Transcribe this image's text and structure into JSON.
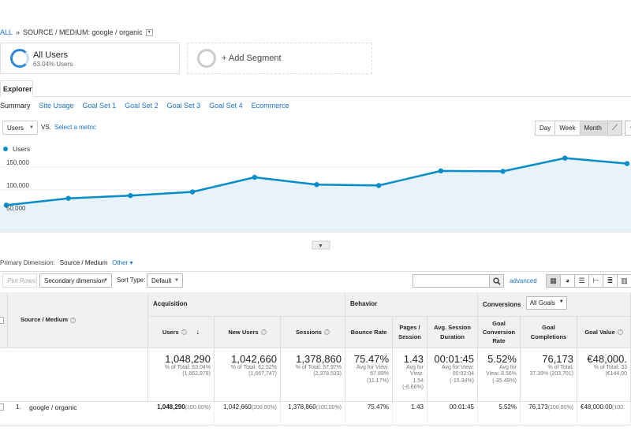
{
  "breadcrumb": {
    "all": "ALL",
    "sep": "»",
    "path": "SOURCE / MEDIUM: google / organic"
  },
  "segments": {
    "all_users": {
      "title": "All Users",
      "subtitle": "63.04% Users"
    },
    "add_segment": {
      "label": "+ Add Segment"
    }
  },
  "explorer_tab": "Explorer",
  "subtabs": [
    "Summary",
    "Site Usage",
    "Goal Set 1",
    "Goal Set 2",
    "Goal Set 3",
    "Goal Set 4",
    "Ecommerce"
  ],
  "metric": {
    "selected": "Users",
    "vs": "VS.",
    "select_metric": "Select a metric"
  },
  "period": {
    "day": "Day",
    "week": "Week",
    "month": "Month",
    "active": "Month"
  },
  "chart_data": {
    "type": "area",
    "series": [
      {
        "name": "Users",
        "values": [
          58000,
          73000,
          79000,
          87000,
          119000,
          103000,
          101000,
          133000,
          132000,
          161000,
          149000
        ]
      }
    ],
    "y_ticks": [
      "150,000",
      "100,000",
      "50,000"
    ],
    "ylim": [
      0,
      200000
    ],
    "grid": true,
    "legend": "top-left",
    "color": "#058dc7",
    "fill": "#e7f2fa"
  },
  "primary_dimension": {
    "label": "Primary Dimension:",
    "value": "Source / Medium",
    "other": "Other"
  },
  "toolbar": {
    "plot_rows": "Plot Rows",
    "secondary_dimension": "Secondary dimension",
    "sort_label": "Sort Type:",
    "sort_value": "Default",
    "advanced": "advanced"
  },
  "table": {
    "dimension_header": "Source / Medium",
    "groups": {
      "acquisition": "Acquisition",
      "behavior": "Behavior",
      "conversions": "Conversions",
      "goals_select": "All Goals"
    },
    "columns": {
      "users": "Users",
      "new_users": "New Users",
      "sessions": "Sessions",
      "bounce_rate": "Bounce Rate",
      "pages_session": "Pages / Session",
      "avg_session": "Avg. Session Duration",
      "goal_conv": "Goal Conversion Rate",
      "goal_completions": "Goal Completions",
      "goal_value": "Goal Value"
    },
    "totals": {
      "users": {
        "value": "1,048,290",
        "line1": "% of Total: 63.04%",
        "line2": "(1,662,978)"
      },
      "new_users": {
        "value": "1,042,660",
        "line1": "% of Total: 62.52%",
        "line2": "(1,667,747)"
      },
      "sessions": {
        "value": "1,378,860",
        "line1": "% of Total: 57.97%",
        "line2": "(2,378,533)"
      },
      "bounce_rate": {
        "value": "75.47%",
        "line1": "Avg for View:",
        "line2": "67.89%",
        "line3": "(11.17%)"
      },
      "pages_session": {
        "value": "1.43",
        "line1": "Avg for",
        "line2": "View:",
        "line3": "1.54",
        "line4": "(-6.66%)"
      },
      "avg_session": {
        "value": "00:01:45",
        "line1": "Avg for View:",
        "line2": "00:02:04",
        "line3": "(-15.34%)"
      },
      "goal_conv": {
        "value": "5.52%",
        "line1": "Avg for",
        "line2": "View: 8.56%",
        "line3": "(-35.49%)"
      },
      "goal_completions": {
        "value": "76,173",
        "line1": "% of Total:",
        "line2": "37.39% (203,701)"
      },
      "goal_value": {
        "value": "€48,000.",
        "line1": "% of Total: 33",
        "line2": "(€144,00"
      }
    },
    "row1": {
      "index": "1.",
      "name": "google / organic",
      "users": "1,048,290",
      "users_pct": "(100.00%)",
      "new_users": "1,042,660",
      "new_users_pct": "(100.00%)",
      "sessions": "1,378,860",
      "sessions_pct": "(100.00%)",
      "bounce_rate": "75.47%",
      "pages_session": "1.43",
      "avg_session": "00:01:45",
      "goal_conv": "5.52%",
      "goal_completions": "76,173",
      "goal_completions_pct": "(100.00%)",
      "goal_value": "€48,000.00",
      "goal_value_pct": "(100."
    }
  }
}
